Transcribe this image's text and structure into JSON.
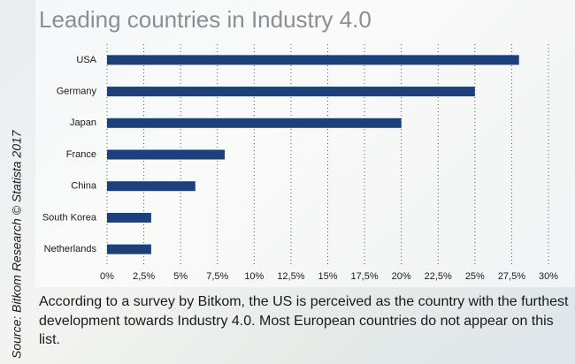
{
  "chart_data": {
    "type": "bar",
    "orientation": "horizontal",
    "title": "Leading countries in Industry 4.0",
    "categories": [
      "USA",
      "Germany",
      "Japan",
      "France",
      "China",
      "South Korea",
      "Netherlands"
    ],
    "values": [
      28,
      25,
      20,
      8,
      6,
      3,
      3
    ],
    "color": "#1d3f7a",
    "xlim": [
      0,
      30
    ],
    "xticks": [
      {
        "value": 0,
        "label": "0%"
      },
      {
        "value": 2.5,
        "label": "2,5%"
      },
      {
        "value": 5,
        "label": "5%"
      },
      {
        "value": 7.5,
        "label": "7,5%"
      },
      {
        "value": 10,
        "label": "10%"
      },
      {
        "value": 12.5,
        "label": "12,5%"
      },
      {
        "value": 15,
        "label": "15%"
      },
      {
        "value": 17.5,
        "label": "17,5%"
      },
      {
        "value": 20,
        "label": "20%"
      },
      {
        "value": 22.5,
        "label": "22,5%"
      },
      {
        "value": 25,
        "label": "25%"
      },
      {
        "value": 27.5,
        "label": "27,5%"
      },
      {
        "value": 30,
        "label": "30%"
      }
    ],
    "grid": true,
    "caption": "According to a survey by Bitkom, the US is perceived as the country with the furthest development towards Industry 4.0. Most European countries do not appear on this list.",
    "source": "Source: Bitkom Research © Statista 2017"
  }
}
